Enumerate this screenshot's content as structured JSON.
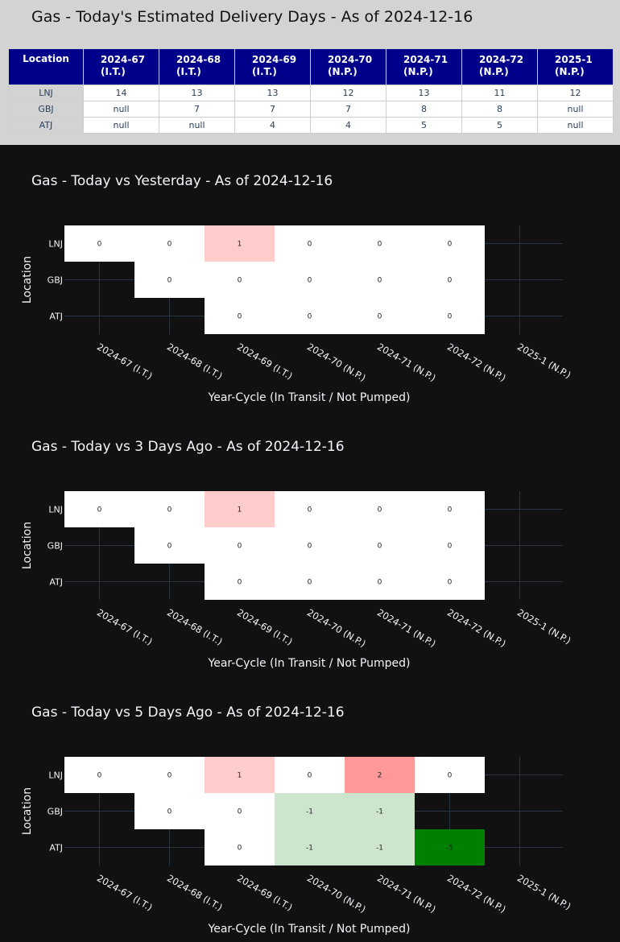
{
  "table": {
    "title": "Gas - Today's Estimated Delivery Days - As of 2024-12-16",
    "header_first": "Location",
    "columns": [
      {
        "line1": "2024-67",
        "line2": "(I.T.)"
      },
      {
        "line1": "2024-68",
        "line2": "(I.T.)"
      },
      {
        "line1": "2024-69",
        "line2": "(I.T.)"
      },
      {
        "line1": "2024-70",
        "line2": "(N.P.)"
      },
      {
        "line1": "2024-71",
        "line2": "(N.P.)"
      },
      {
        "line1": "2024-72",
        "line2": "(N.P.)"
      },
      {
        "line1": "2025-1",
        "line2": "(N.P.)"
      }
    ],
    "rows": [
      {
        "location": "LNJ",
        "cells": [
          "14",
          "13",
          "13",
          "12",
          "13",
          "11",
          "12"
        ]
      },
      {
        "location": "GBJ",
        "cells": [
          "null",
          "7",
          "7",
          "7",
          "8",
          "8",
          "null"
        ]
      },
      {
        "location": "ATJ",
        "cells": [
          "null",
          "null",
          "4",
          "4",
          "5",
          "5",
          "null"
        ]
      }
    ]
  },
  "chart_data": [
    {
      "type": "heatmap",
      "title": "Gas - Today vs Yesterday - As of 2024-12-16",
      "xlabel": "Year-Cycle (In Transit / Not Pumped)",
      "ylabel": "Location",
      "x": [
        "2024-67 (I.T.)",
        "2024-68 (I.T.)",
        "2024-69 (I.T.)",
        "2024-70 (N.P.)",
        "2024-71 (N.P.)",
        "2024-72 (N.P.)",
        "2025-1 (N.P.)"
      ],
      "y": [
        "LNJ",
        "GBJ",
        "ATJ"
      ],
      "z": [
        [
          0,
          0,
          1,
          0,
          0,
          0,
          null
        ],
        [
          null,
          0,
          0,
          0,
          0,
          0,
          null
        ],
        [
          null,
          null,
          0,
          0,
          0,
          0,
          null
        ]
      ]
    },
    {
      "type": "heatmap",
      "title": "Gas - Today vs 3 Days Ago - As of 2024-12-16",
      "xlabel": "Year-Cycle (In Transit / Not Pumped)",
      "ylabel": "Location",
      "x": [
        "2024-67 (I.T.)",
        "2024-68 (I.T.)",
        "2024-69 (I.T.)",
        "2024-70 (N.P.)",
        "2024-71 (N.P.)",
        "2024-72 (N.P.)",
        "2025-1 (N.P.)"
      ],
      "y": [
        "LNJ",
        "GBJ",
        "ATJ"
      ],
      "z": [
        [
          0,
          0,
          1,
          0,
          0,
          0,
          null
        ],
        [
          null,
          0,
          0,
          0,
          0,
          0,
          null
        ],
        [
          null,
          null,
          0,
          0,
          0,
          0,
          null
        ]
      ]
    },
    {
      "type": "heatmap",
      "title": "Gas - Today vs 5 Days Ago - As of 2024-12-16",
      "xlabel": "Year-Cycle (In Transit / Not Pumped)",
      "ylabel": "Location",
      "x": [
        "2024-67 (I.T.)",
        "2024-68 (I.T.)",
        "2024-69 (I.T.)",
        "2024-70 (N.P.)",
        "2024-71 (N.P.)",
        "2024-72 (N.P.)",
        "2025-1 (N.P.)"
      ],
      "y": [
        "LNJ",
        "GBJ",
        "ATJ"
      ],
      "z": [
        [
          0,
          0,
          1,
          0,
          2,
          0,
          null
        ],
        [
          null,
          0,
          0,
          -1,
          -1,
          null,
          null
        ],
        [
          null,
          null,
          0,
          -1,
          -1,
          -5,
          null
        ]
      ]
    }
  ],
  "colors": {
    "zero": "#ffffff",
    "pos1": "#ffcccc",
    "pos2": "#ff9999",
    "pos_max": "#ff0000",
    "neg1": "#cce5cc",
    "neg_max": "#008000"
  }
}
